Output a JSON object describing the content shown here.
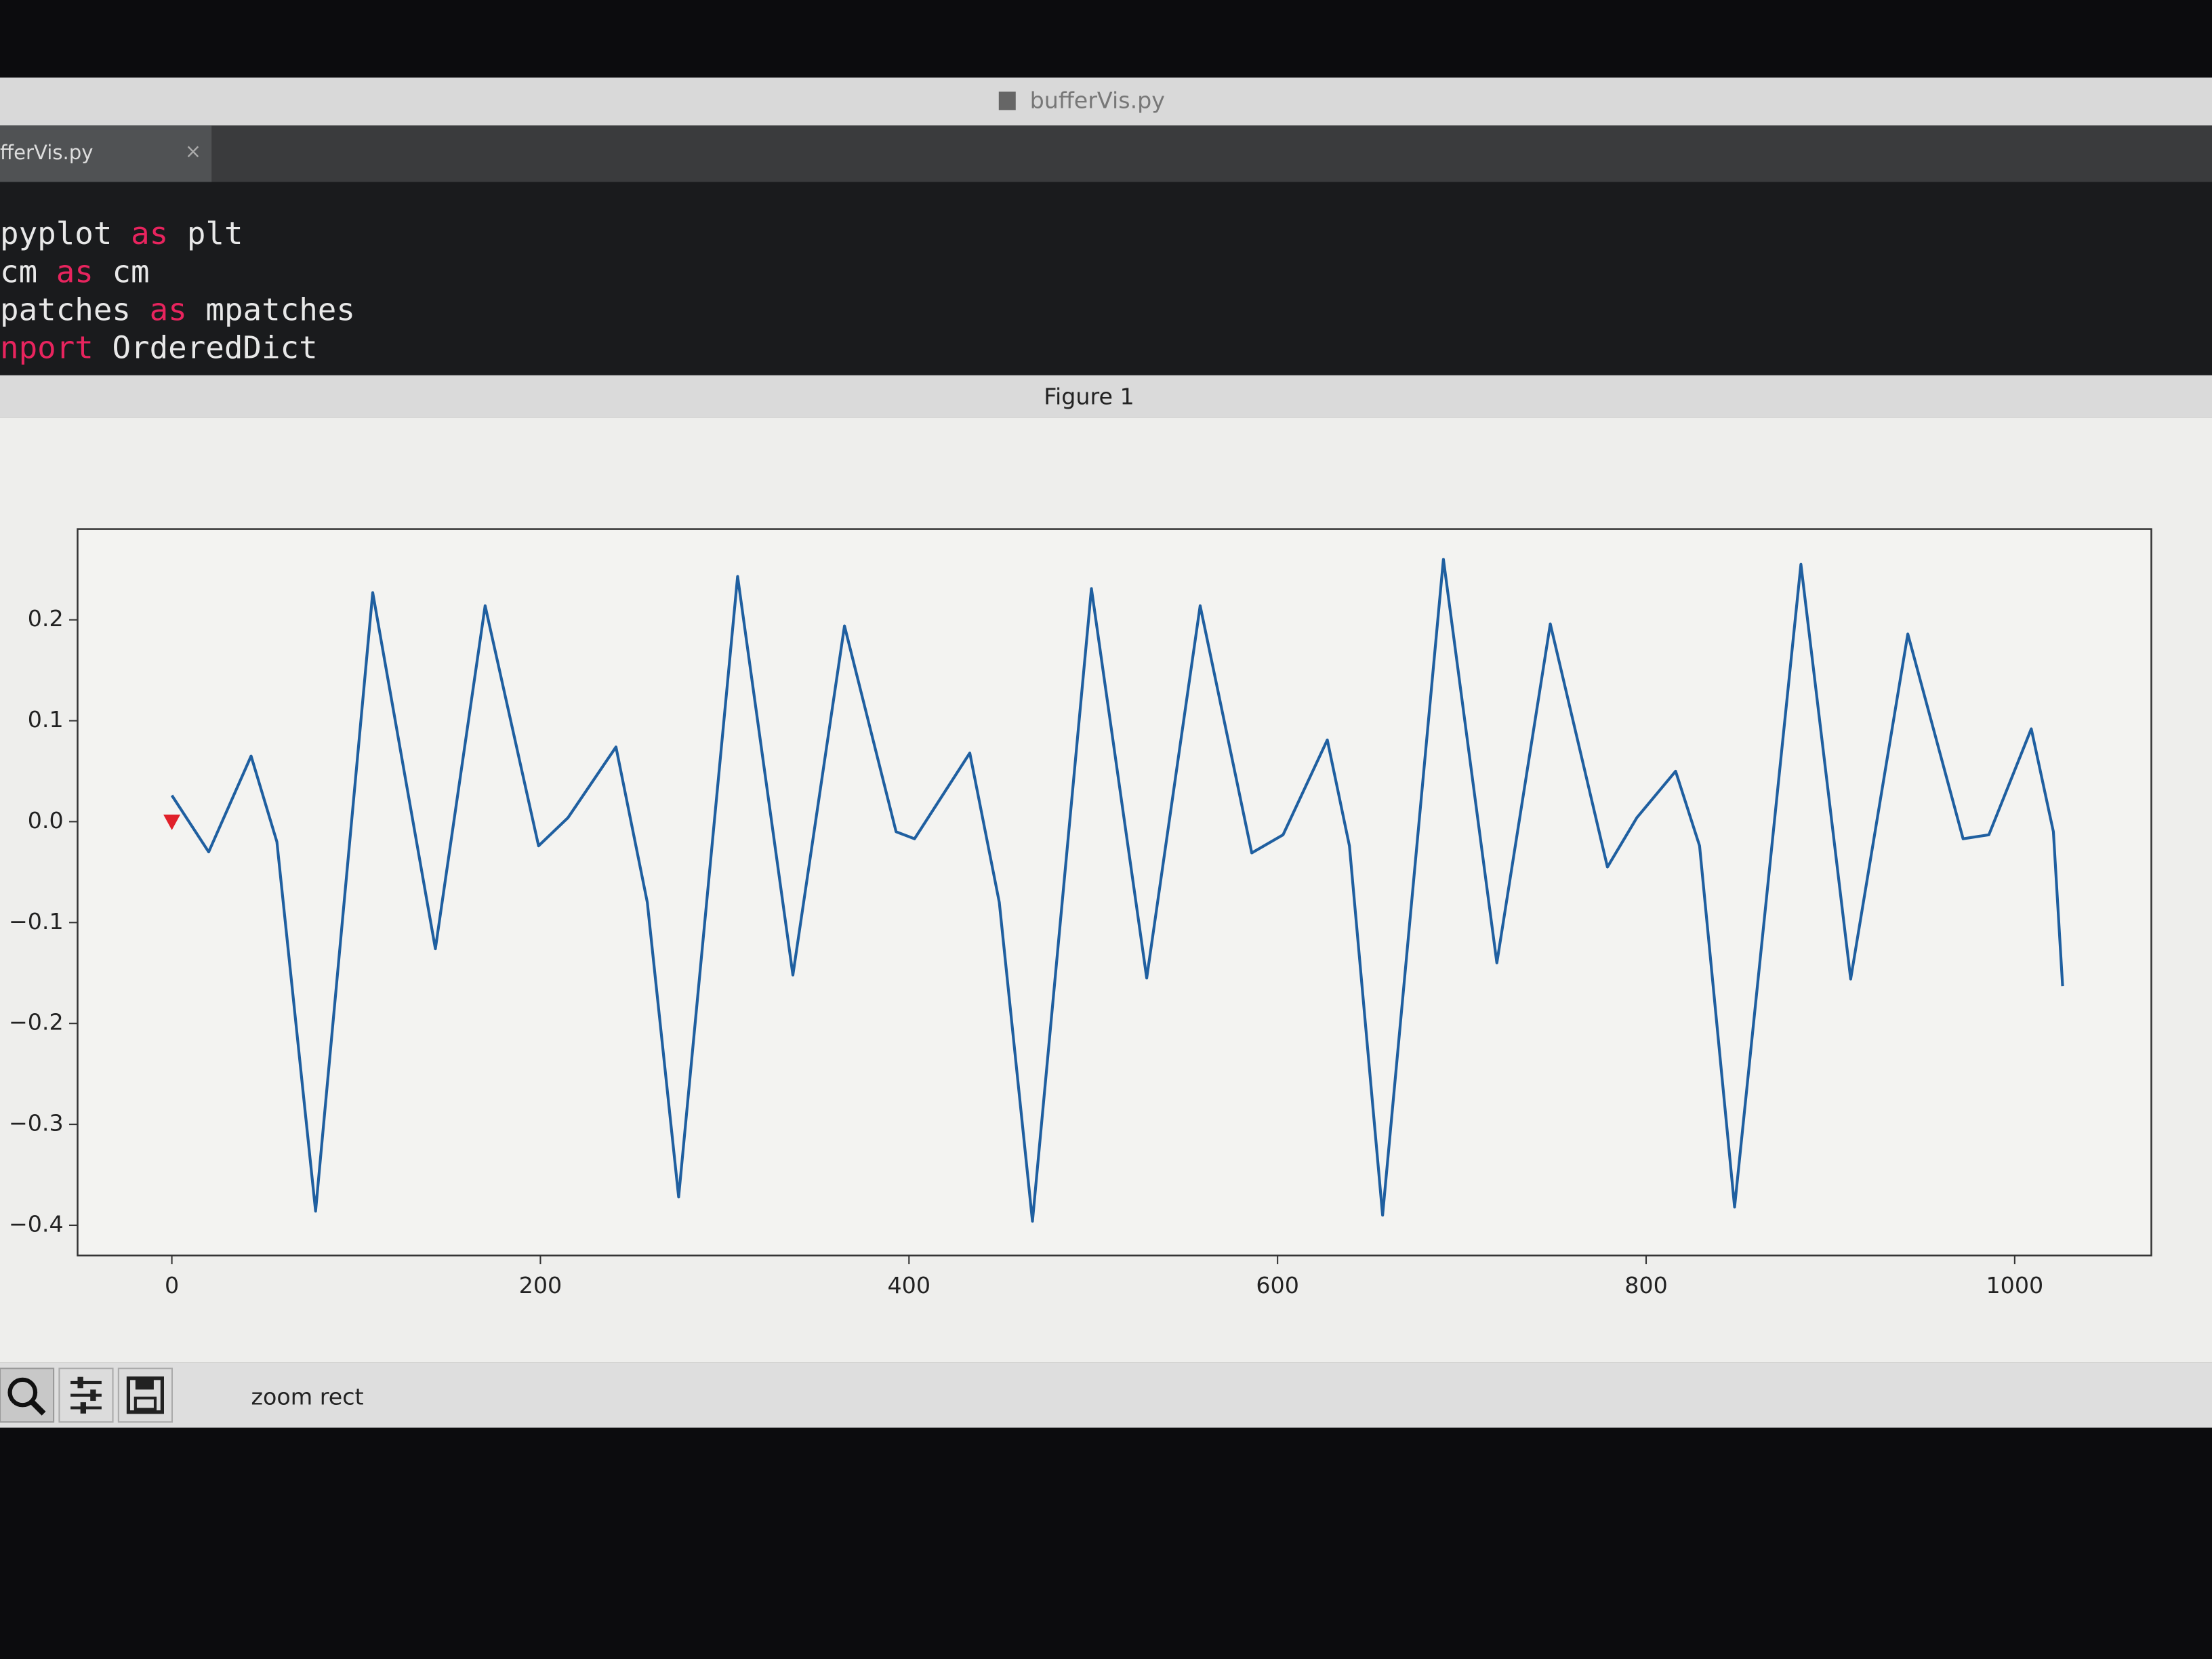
{
  "editor": {
    "window_title": "bufferVis.py",
    "tab_label": "fferVis.py",
    "tab_close": "×",
    "code_lines": [
      [
        {
          "text": "pyplot"
        },
        {
          "text": "as",
          "keyword": true
        },
        {
          "text": "plt"
        }
      ],
      [
        {
          "text": "cm"
        },
        {
          "text": "as",
          "keyword": true
        },
        {
          "text": "cm"
        }
      ],
      [
        {
          "text": "patches"
        },
        {
          "text": "as",
          "keyword": true
        },
        {
          "text": "mpatches"
        }
      ],
      [
        {
          "text": "nport",
          "keyword": true
        },
        {
          "text": "OrderedDict"
        }
      ]
    ]
  },
  "figure": {
    "window_title": "Figure 1",
    "toolbar_status": "zoom rect"
  },
  "chart_data": {
    "type": "line",
    "series": [
      {
        "color": "#1f5fa0",
        "x": [
          0,
          20,
          43,
          57,
          78,
          109,
          143,
          170,
          199,
          215,
          241,
          258,
          275,
          307,
          337,
          365,
          393,
          403,
          433,
          449,
          467,
          499,
          529,
          558,
          586,
          603,
          627,
          639,
          657,
          690,
          719,
          748,
          779,
          795,
          816,
          829,
          848,
          884,
          911,
          942,
          972,
          986,
          1009,
          1021,
          1026
        ],
        "values": [
          0.026,
          -0.03,
          0.065,
          -0.02,
          -0.386,
          0.227,
          -0.126,
          0.214,
          -0.024,
          0.004,
          0.074,
          -0.08,
          -0.372,
          0.243,
          -0.152,
          0.194,
          -0.01,
          -0.017,
          0.068,
          -0.08,
          -0.396,
          0.231,
          -0.155,
          0.214,
          -0.031,
          -0.013,
          0.081,
          -0.024,
          -0.39,
          0.26,
          -0.14,
          0.196,
          -0.045,
          0.004,
          0.05,
          -0.024,
          -0.382,
          0.255,
          -0.156,
          0.186,
          -0.017,
          -0.013,
          0.092,
          -0.01,
          -0.163
        ]
      }
    ],
    "markers": [
      {
        "x": 0,
        "y": 0,
        "color": "#e0202a"
      }
    ],
    "xlim": [
      -51.15,
      1074.15
    ],
    "ylim": [
      -0.43,
      0.29
    ],
    "xticks": [
      0,
      200,
      400,
      600,
      800,
      1000
    ],
    "yticks": [
      {
        "value": -0.4,
        "label": "−0.4"
      },
      {
        "value": -0.3,
        "label": "−0.3"
      },
      {
        "value": -0.2,
        "label": "−0.2"
      },
      {
        "value": -0.1,
        "label": "−0.1"
      },
      {
        "value": 0,
        "label": "0.0"
      },
      0.1,
      0.2
    ]
  }
}
